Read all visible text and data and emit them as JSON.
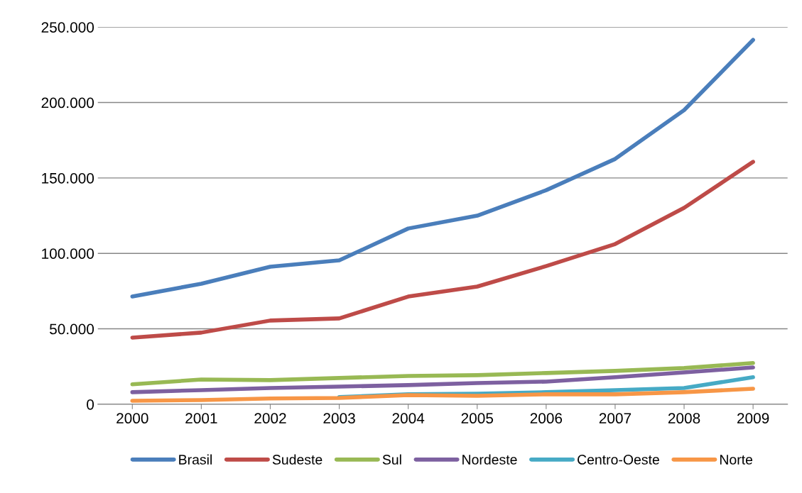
{
  "chart_data": {
    "type": "line",
    "categories": [
      "2000",
      "2001",
      "2002",
      "2003",
      "2004",
      "2005",
      "2006",
      "2007",
      "2008",
      "2009"
    ],
    "series": [
      {
        "name": "Brasil",
        "color": "#4a7ebb",
        "values": [
          71400,
          79900,
          91200,
          95400,
          116500,
          125000,
          141900,
          162600,
          195000,
          241500
        ]
      },
      {
        "name": "Sudeste",
        "color": "#be4b48",
        "values": [
          44200,
          47500,
          55500,
          56900,
          71400,
          78000,
          91600,
          106200,
          130200,
          160700
        ]
      },
      {
        "name": "Sul",
        "color": "#98b954",
        "values": [
          13200,
          16400,
          16000,
          17400,
          18800,
          19300,
          20700,
          22100,
          24000,
          27300
        ]
      },
      {
        "name": "Nordeste",
        "color": "#7d60a0",
        "values": [
          8000,
          9400,
          10800,
          11700,
          12700,
          14100,
          15000,
          17900,
          21100,
          24400
        ]
      },
      {
        "name": "Centro-Oeste",
        "color": "#46aac5",
        "values": [
          null,
          null,
          null,
          4800,
          6600,
          7000,
          8000,
          9400,
          10800,
          17900
        ]
      },
      {
        "name": "Norte",
        "color": "#f79646",
        "values": [
          2300,
          2800,
          3800,
          4200,
          6100,
          5600,
          6600,
          6600,
          8000,
          10300
        ]
      }
    ],
    "ylim": [
      0,
      250000
    ],
    "yticks": [
      0,
      {
        "value": 50000,
        "label": "50.000"
      },
      {
        "value": 100000,
        "label": "100.000"
      },
      {
        "value": 150000,
        "label": "150.000"
      },
      {
        "value": 200000,
        "label": "200.000"
      },
      {
        "value": 250000,
        "label": "250.000"
      }
    ],
    "grid": "y",
    "legend": "bottom",
    "marker": "none",
    "line_style": "solid"
  }
}
